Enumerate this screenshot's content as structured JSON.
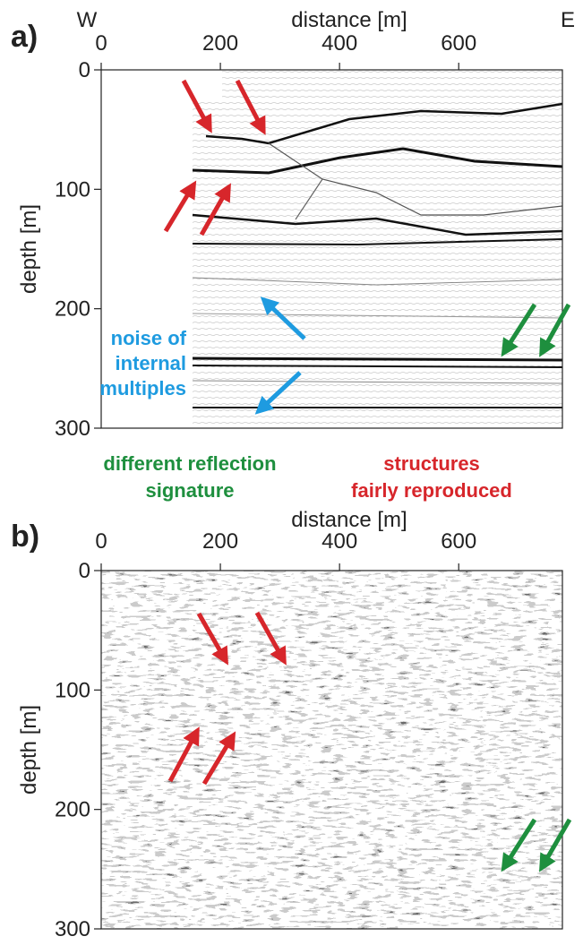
{
  "panels": [
    {
      "label": "a)",
      "west": "W",
      "east": "E",
      "x_axis": {
        "title": "distance [m]",
        "ticks": [
          0,
          200,
          400,
          600
        ],
        "range": [
          0,
          774
        ]
      },
      "y_axis": {
        "title": "depth [m]",
        "ticks": [
          0,
          100,
          200,
          300
        ],
        "range": [
          0,
          300
        ]
      },
      "annotations": [
        {
          "lines": [
            "noise of",
            "internal",
            "multiples"
          ],
          "color": "#1e9be0"
        },
        {
          "lines": [
            "different reflection",
            "signature"
          ],
          "color": "#1e8f3e"
        },
        {
          "lines": [
            "structures",
            "fairly reproduced"
          ],
          "color": "#d7262b"
        }
      ]
    },
    {
      "label": "b)",
      "x_axis": {
        "title": "distance [m]",
        "ticks": [
          0,
          200,
          400,
          600
        ],
        "range": [
          0,
          774
        ]
      },
      "y_axis": {
        "title": "depth [m]",
        "ticks": [
          0,
          100,
          200,
          300
        ],
        "range": [
          0,
          300
        ]
      }
    }
  ]
}
